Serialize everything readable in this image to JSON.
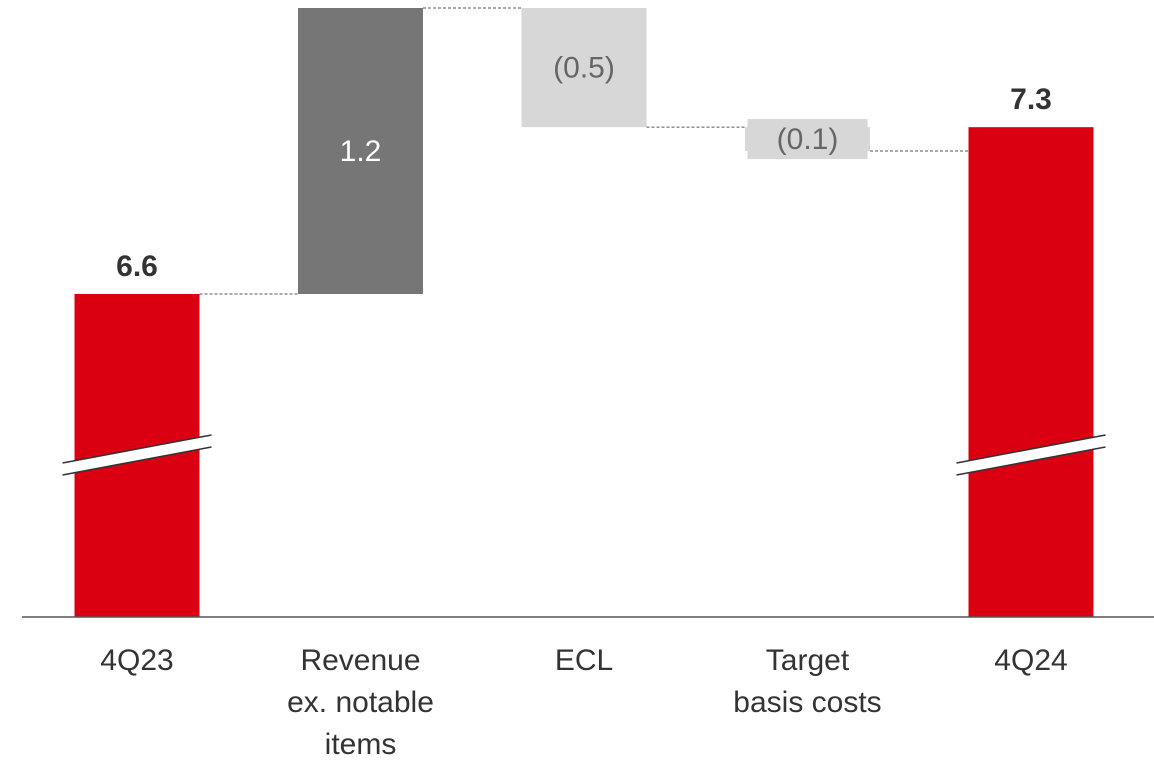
{
  "chart_data": {
    "type": "waterfall",
    "categories": [
      "4Q23",
      "Revenue\nex. notable\nitems",
      "ECL",
      "Target\nbasis costs",
      "4Q24"
    ],
    "values": [
      6.6,
      1.2,
      -0.5,
      -0.1,
      7.3
    ],
    "value_labels": [
      "6.6",
      "1.2",
      "(0.5)",
      "(0.1)",
      "7.3"
    ],
    "measures": [
      "absolute",
      "relative",
      "relative",
      "relative",
      "absolute"
    ],
    "colors": [
      "#db0011",
      "#767676",
      "#d7d7d7",
      "#d7d7d7",
      "#db0011"
    ]
  }
}
